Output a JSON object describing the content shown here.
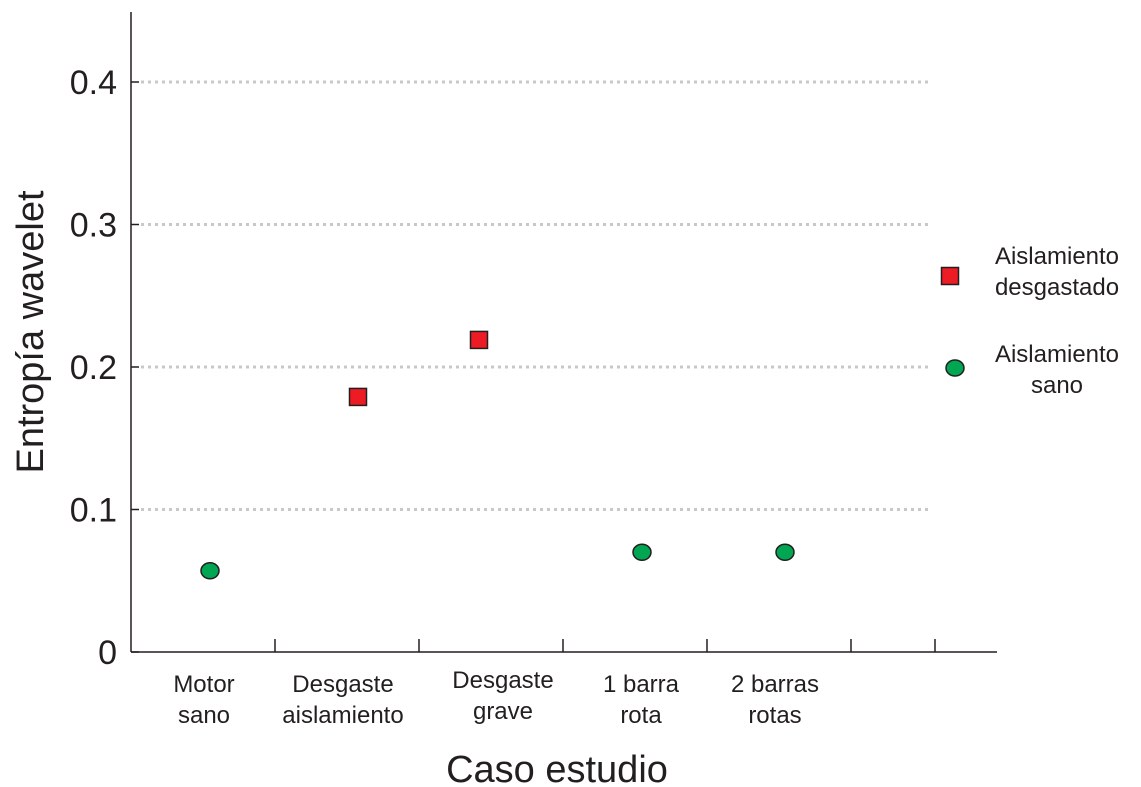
{
  "chart_data": {
    "type": "scatter",
    "xlabel": "Caso estudio",
    "ylabel": "Entropía wavelet",
    "ylim": [
      0,
      0.45
    ],
    "yticks": [
      0,
      0.1,
      0.2,
      0.3,
      0.4
    ],
    "ytick_labels": [
      "0",
      "0.1",
      "0.2",
      "0.3",
      "0.4"
    ],
    "grid": "horizontal dotted",
    "legend_position": "right",
    "categories": [
      [
        "Motor",
        "sano"
      ],
      [
        "Desgaste",
        "aislamiento"
      ],
      [
        "Desgaste",
        "grave"
      ],
      [
        "1 barra",
        "rota"
      ],
      [
        "2 barras",
        "rotas"
      ]
    ],
    "series": [
      {
        "name": "Aislamiento desgastado",
        "legend_lines": [
          "Aislamiento",
          "desgastado"
        ],
        "marker": "square",
        "color": "#ed1c24",
        "points": [
          {
            "category": 1,
            "y": 0.179
          },
          {
            "category": 2,
            "y": 0.219
          }
        ]
      },
      {
        "name": "Aislamiento sano",
        "legend_lines": [
          "Aislamiento",
          "sano"
        ],
        "marker": "circle",
        "color": "#00a651",
        "points": [
          {
            "category": 0,
            "y": 0.057
          },
          {
            "category": 3,
            "y": 0.07
          },
          {
            "category": 4,
            "y": 0.07
          }
        ]
      }
    ]
  }
}
